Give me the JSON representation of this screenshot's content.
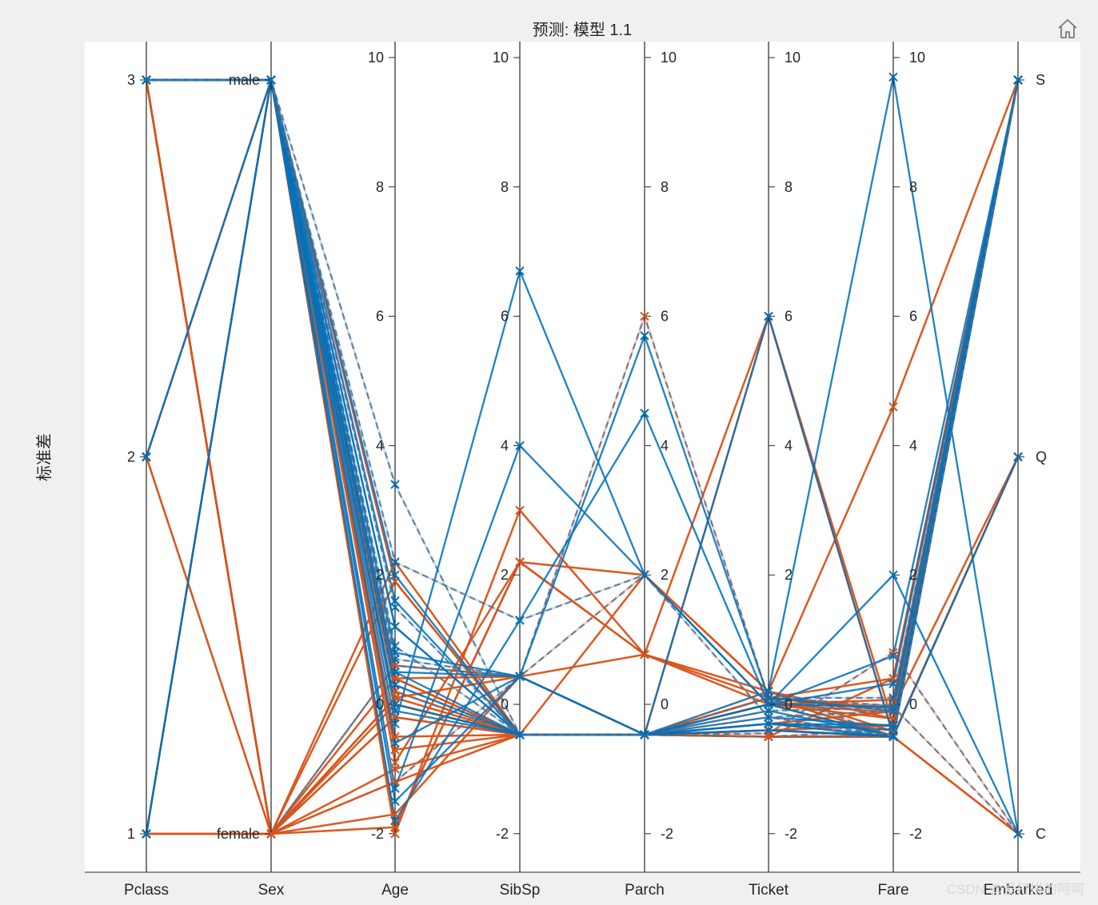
{
  "window": {
    "home_icon": "home-icon"
  },
  "chart_data": {
    "type": "parallel-coordinates",
    "title": "预测: 模型 1.1",
    "ylabel": "标准差",
    "axes": [
      "Pclass",
      "Sex",
      "Age",
      "SibSp",
      "Parch",
      "Ticket",
      "Fare",
      "Embarked"
    ],
    "categorical_axes": {
      "Pclass": [
        "1",
        "2",
        "3"
      ],
      "Sex": [
        "female",
        "male"
      ],
      "Embarked": [
        "C",
        "Q",
        "S"
      ]
    },
    "numeric_ticks": [
      -2,
      0,
      2,
      4,
      6,
      8,
      10
    ],
    "numeric_ylim": [
      -2.6,
      10.2
    ],
    "grid": false,
    "colors": {
      "orange": "#d95319",
      "light_orange": "#f4b8a2",
      "blue": "#0072bd",
      "light_blue": "#b7d7ec",
      "gray_blue": "#5a6e8a"
    },
    "series": [
      {
        "values": [
          3,
          "male",
          0.2,
          -0.47,
          -0.47,
          -0.5,
          -0.5,
          "S"
        ],
        "style": "orange"
      },
      {
        "values": [
          1,
          "female",
          0.6,
          0.43,
          -0.47,
          -0.45,
          0.8,
          "C"
        ],
        "style": "orange"
      },
      {
        "values": [
          3,
          "female",
          -0.2,
          -0.47,
          -0.47,
          -0.4,
          -0.49,
          "S"
        ],
        "style": "orange"
      },
      {
        "values": [
          1,
          "female",
          0.4,
          0.43,
          -0.47,
          0.1,
          0.4,
          "S"
        ],
        "style": "orange"
      },
      {
        "values": [
          3,
          "male",
          0.4,
          -0.47,
          -0.47,
          0.1,
          -0.49,
          "S"
        ],
        "style": "orange"
      },
      {
        "values": [
          3,
          "male",
          0.0,
          -0.47,
          -0.47,
          -0.3,
          -0.48,
          "Q"
        ],
        "style": "orange"
      },
      {
        "values": [
          1,
          "male",
          1.9,
          -0.47,
          -0.47,
          -0.5,
          0.4,
          "S"
        ],
        "style": "orange"
      },
      {
        "values": [
          3,
          "male",
          -1.9,
          2.2,
          0.77,
          0.0,
          -0.22,
          "S"
        ],
        "style": "orange"
      },
      {
        "values": [
          3,
          "female",
          -0.2,
          -0.47,
          2.0,
          0.2,
          -0.42,
          "S"
        ],
        "style": "orange"
      },
      {
        "values": [
          2,
          "female",
          -1.2,
          0.43,
          -0.47,
          0.0,
          -0.04,
          "C"
        ],
        "style": "orange"
      },
      {
        "values": [
          3,
          "female",
          -1.7,
          0.43,
          0.77,
          6.0,
          -0.31,
          "S"
        ],
        "style": "orange"
      },
      {
        "values": [
          1,
          "female",
          2.2,
          -0.47,
          -0.47,
          -0.3,
          -0.11,
          "S"
        ],
        "style": "orange"
      },
      {
        "values": [
          3,
          "male",
          -0.7,
          -0.47,
          -0.47,
          6.0,
          -0.49,
          "S"
        ],
        "style": "orange"
      },
      {
        "values": [
          3,
          "male",
          0.6,
          0.43,
          2.0,
          0.0,
          -0.02,
          "S"
        ],
        "style": "orange"
      },
      {
        "values": [
          3,
          "female",
          -1.2,
          -0.47,
          -0.47,
          0.1,
          -0.49,
          "S"
        ],
        "style": "orange"
      },
      {
        "values": [
          2,
          "female",
          1.9,
          -0.47,
          -0.47,
          -0.4,
          -0.33,
          "S"
        ],
        "style": "orange"
      },
      {
        "values": [
          3,
          "male",
          -2.0,
          3.0,
          0.77,
          0.1,
          -0.06,
          "Q"
        ],
        "style": "orange"
      },
      {
        "values": [
          2,
          "male",
          0.2,
          -0.47,
          -0.47,
          -0.5,
          -0.39,
          "S"
        ],
        "style": "orange"
      },
      {
        "values": [
          3,
          "female",
          0.1,
          0.43,
          -0.47,
          -0.4,
          -0.32,
          "S"
        ],
        "style": "orange"
      },
      {
        "values": [
          3,
          "female",
          0.1,
          -0.47,
          -0.47,
          -0.5,
          -0.5,
          "C"
        ],
        "style": "orange"
      },
      {
        "values": [
          2,
          "male",
          0.4,
          -0.47,
          -0.47,
          0.0,
          -0.12,
          "S"
        ],
        "style": "orange"
      },
      {
        "values": [
          2,
          "male",
          0.3,
          -0.47,
          -0.47,
          -0.3,
          -0.39,
          "S"
        ],
        "style": "orange"
      },
      {
        "values": [
          3,
          "female",
          -1.0,
          -0.47,
          -0.47,
          -0.5,
          -0.49,
          "Q"
        ],
        "style": "orange"
      },
      {
        "values": [
          1,
          "male",
          -0.5,
          -0.47,
          -0.47,
          0.0,
          0.07,
          "S"
        ],
        "style": "orange"
      },
      {
        "values": [
          3,
          "female",
          -1.9,
          2.2,
          0.77,
          0.2,
          -0.22,
          "S"
        ],
        "style": "orange"
      },
      {
        "values": [
          3,
          "female",
          0.6,
          0.43,
          6.0,
          0.1,
          -0.02,
          "S"
        ],
        "style": "orange"
      },
      {
        "values": [
          3,
          "male",
          0.0,
          -0.47,
          -0.47,
          0.0,
          -0.5,
          "C"
        ],
        "style": "orange"
      },
      {
        "values": [
          1,
          "male",
          -0.9,
          2.2,
          2.0,
          0.2,
          4.6,
          "S"
        ],
        "style": "orange"
      },
      {
        "values": [
          3,
          "female",
          0.0,
          -0.47,
          -0.47,
          -0.5,
          -0.49,
          "Q"
        ],
        "style": "orange"
      },
      {
        "values": [
          3,
          "male",
          0.0,
          -0.47,
          -0.47,
          -0.5,
          -0.5,
          "S"
        ],
        "style": "orange"
      },
      {
        "values": [
          3,
          "male",
          -0.1,
          -0.47,
          -0.47,
          -0.4,
          -0.5,
          "S"
        ],
        "style": "blue"
      },
      {
        "values": [
          3,
          "male",
          0.5,
          0.43,
          -0.47,
          -0.2,
          -0.33,
          "S"
        ],
        "style": "blue"
      },
      {
        "values": [
          3,
          "male",
          1.6,
          -0.47,
          -0.47,
          -0.1,
          -0.49,
          "S"
        ],
        "style": "blue"
      },
      {
        "values": [
          1,
          "male",
          3.4,
          -0.47,
          -0.47,
          0.1,
          0.1,
          "S"
        ],
        "style": "blue"
      },
      {
        "values": [
          3,
          "male",
          -1.3,
          4.0,
          2.0,
          0.0,
          0.32,
          "S"
        ],
        "style": "blue"
      },
      {
        "values": [
          3,
          "male",
          -0.3,
          6.7,
          2.0,
          0.0,
          0.75,
          "S"
        ],
        "style": "blue"
      },
      {
        "values": [
          3,
          "male",
          2.0,
          -0.47,
          -0.47,
          -0.3,
          -0.5,
          "S"
        ],
        "style": "blue"
      },
      {
        "values": [
          2,
          "male",
          0.7,
          0.43,
          -0.47,
          -0.1,
          -0.05,
          "S"
        ],
        "style": "blue"
      },
      {
        "values": [
          3,
          "male",
          -1.5,
          0.43,
          5.7,
          0.1,
          -0.1,
          "S"
        ],
        "style": "blue"
      },
      {
        "values": [
          1,
          "male",
          1.2,
          -0.47,
          -0.47,
          0.2,
          9.7,
          "C"
        ],
        "style": "blue"
      },
      {
        "values": [
          3,
          "male",
          0.3,
          -0.47,
          -0.47,
          0.0,
          -0.5,
          "Q"
        ],
        "style": "blue"
      },
      {
        "values": [
          2,
          "male",
          2.2,
          1.3,
          2.0,
          -0.2,
          -0.1,
          "S"
        ],
        "style": "blue"
      },
      {
        "values": [
          3,
          "male",
          -1.8,
          1.3,
          4.5,
          0.0,
          -0.04,
          "S"
        ],
        "style": "blue"
      },
      {
        "values": [
          3,
          "male",
          0.0,
          -0.47,
          -0.47,
          6.0,
          -0.48,
          "S"
        ],
        "style": "blue"
      },
      {
        "values": [
          3,
          "male",
          1.2,
          -0.47,
          -0.47,
          -0.4,
          -0.49,
          "S"
        ],
        "style": "blue"
      },
      {
        "values": [
          3,
          "male",
          0.9,
          -0.47,
          -0.47,
          -0.2,
          -0.49,
          "S"
        ],
        "style": "blue"
      },
      {
        "values": [
          1,
          "male",
          0.8,
          0.43,
          -0.47,
          0.0,
          2.0,
          "C"
        ],
        "style": "blue"
      },
      {
        "values": [
          3,
          "male",
          -0.6,
          0.43,
          -0.47,
          -0.3,
          -0.32,
          "S"
        ],
        "style": "blue"
      },
      {
        "values": [
          2,
          "male",
          0.5,
          -0.47,
          -0.47,
          -0.3,
          -0.39,
          "S"
        ],
        "style": "blue"
      },
      {
        "values": [
          3,
          "male",
          1.5,
          -0.47,
          -0.47,
          0.2,
          -0.5,
          "S"
        ],
        "style": "blue"
      }
    ]
  },
  "watermark": "CSDN @爱打拼的呵呵"
}
